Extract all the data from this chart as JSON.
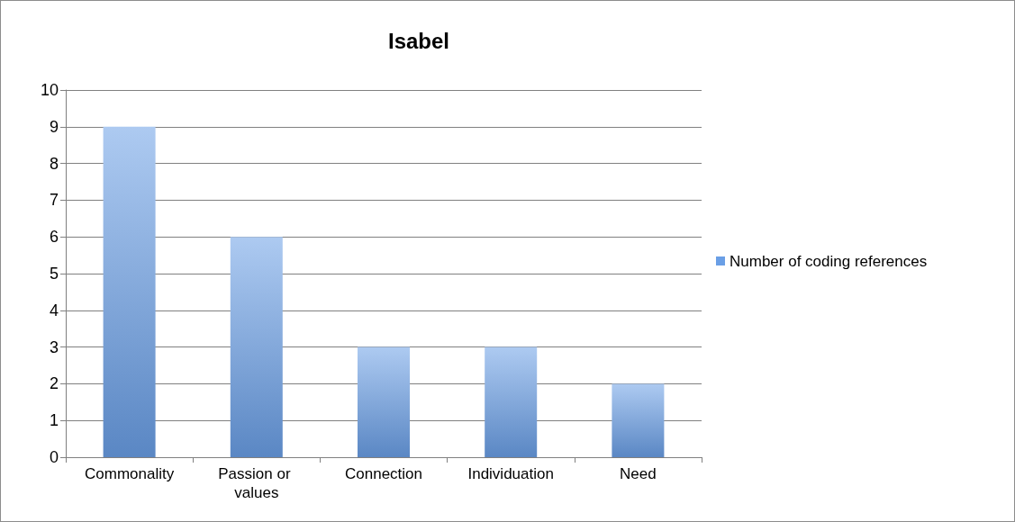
{
  "chart_data": {
    "type": "bar",
    "title": "Isabel",
    "categories": [
      "Commonality",
      "Passion or values",
      "Connection",
      "Individuation",
      "Need"
    ],
    "series": [
      {
        "name": "Number of coding references",
        "color": "#6a9fe6",
        "values": [
          9,
          6,
          3,
          3,
          2
        ]
      }
    ],
    "ylim": [
      0,
      10
    ],
    "yticks": [
      0,
      1,
      2,
      3,
      4,
      5,
      6,
      7,
      8,
      9,
      10
    ],
    "grid": "y",
    "legend": "right"
  }
}
